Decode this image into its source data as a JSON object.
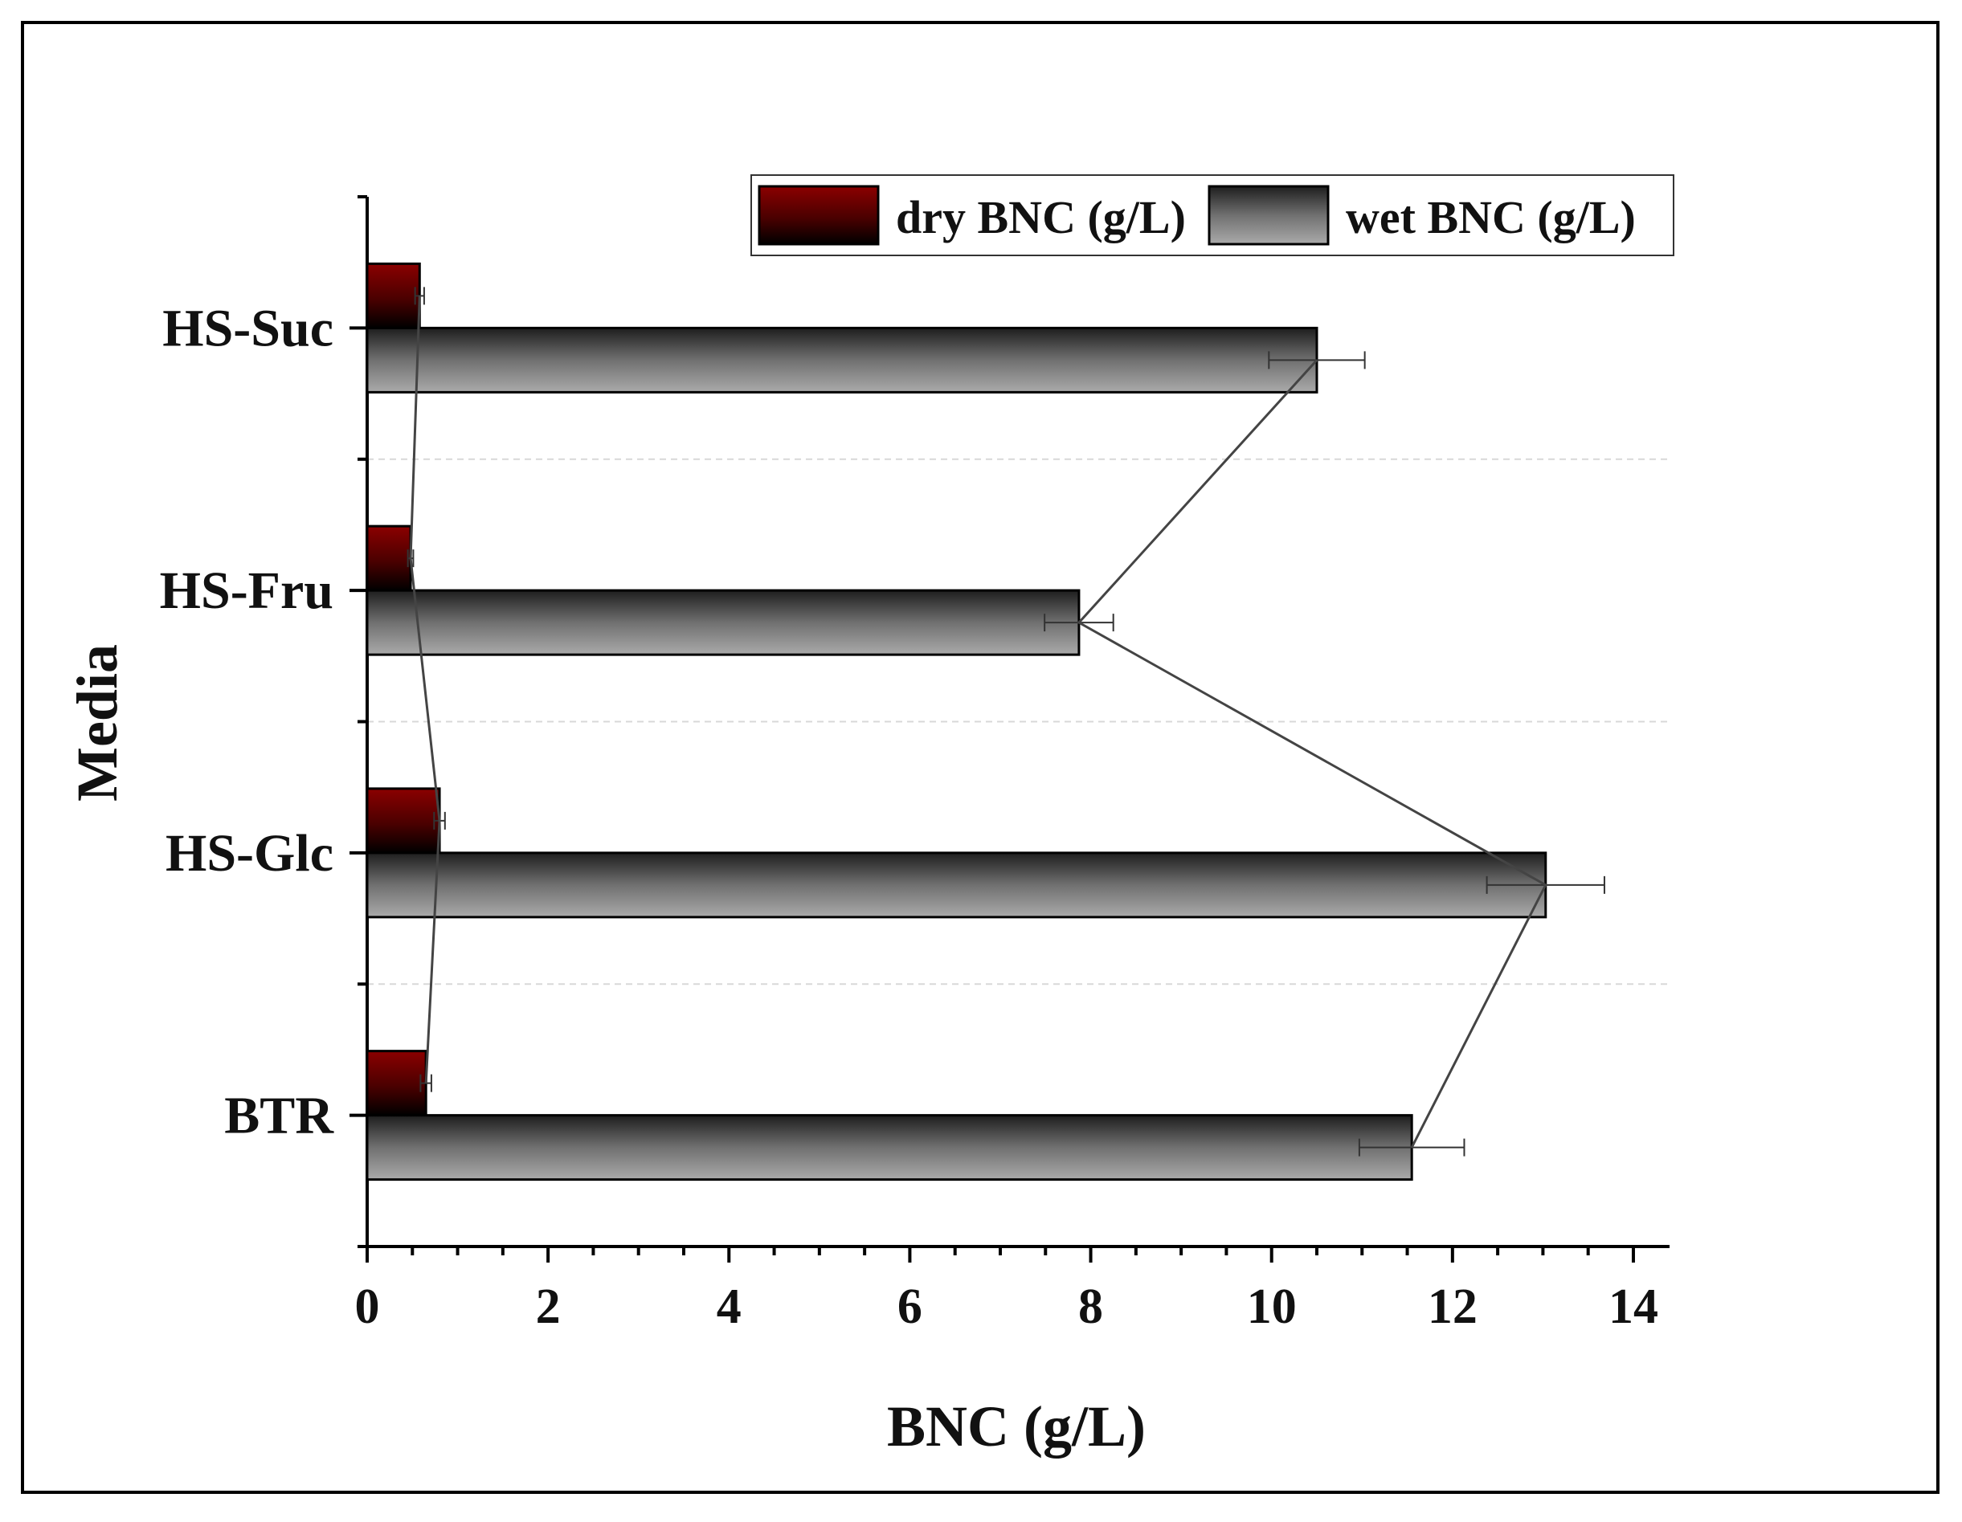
{
  "chart_data": {
    "type": "bar",
    "orientation": "horizontal",
    "categories": [
      "BTR",
      "HS-Glc",
      "HS-Fru",
      "HS-Suc"
    ],
    "series": [
      {
        "name": "dry BNC (g/L)",
        "values": [
          0.65,
          0.8,
          0.48,
          0.58
        ],
        "errors": [
          0.06,
          0.06,
          0.03,
          0.05
        ],
        "color": "#8b0000"
      },
      {
        "name": "wet BNC (g/L)",
        "values": [
          11.55,
          13.03,
          7.87,
          10.5
        ],
        "errors": [
          0.58,
          0.65,
          0.38,
          0.53
        ],
        "color": "#8c8c8c"
      }
    ],
    "connecting_lines": true,
    "xlabel": "BNC (g/L)",
    "ylabel": "Media",
    "xlim": [
      0,
      14.4
    ],
    "xticks": [
      0,
      2,
      4,
      6,
      8,
      10,
      12,
      14
    ],
    "grid": "dashed horizontal separators",
    "legend_position": "top-right"
  }
}
